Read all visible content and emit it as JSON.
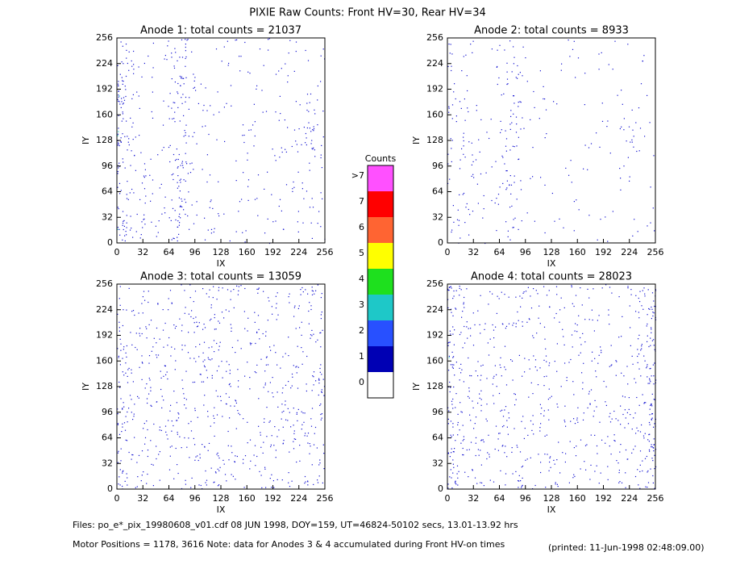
{
  "title": "PIXIE Raw Counts:  Front HV=30, Rear HV=34",
  "chart_data": [
    {
      "type": "heatmap",
      "title": "Anode 1: total counts = 21037",
      "xlabel": "IX",
      "ylabel": "IY",
      "xlim": [
        0,
        256
      ],
      "ylim": [
        0,
        256
      ],
      "xticks": [
        0,
        32,
        64,
        96,
        128,
        160,
        192,
        224,
        256
      ],
      "yticks": [
        0,
        32,
        64,
        96,
        128,
        160,
        192,
        224,
        256
      ]
    },
    {
      "type": "heatmap",
      "title": "Anode 2: total counts = 8933",
      "xlabel": "IX",
      "ylabel": "IY",
      "xlim": [
        0,
        256
      ],
      "ylim": [
        0,
        256
      ],
      "xticks": [
        0,
        32,
        64,
        96,
        128,
        160,
        192,
        224,
        256
      ],
      "yticks": [
        0,
        32,
        64,
        96,
        128,
        160,
        192,
        224,
        256
      ]
    },
    {
      "type": "heatmap",
      "title": "Anode 3: total counts = 13059",
      "xlabel": "IX",
      "ylabel": "IY",
      "xlim": [
        0,
        256
      ],
      "ylim": [
        0,
        256
      ],
      "xticks": [
        0,
        32,
        64,
        96,
        128,
        160,
        192,
        224,
        256
      ],
      "yticks": [
        0,
        32,
        64,
        96,
        128,
        160,
        192,
        224,
        256
      ]
    },
    {
      "type": "heatmap",
      "title": "Anode 4: total counts = 28023",
      "xlabel": "IX",
      "ylabel": "IY",
      "xlim": [
        0,
        256
      ],
      "ylim": [
        0,
        256
      ],
      "xticks": [
        0,
        32,
        64,
        96,
        128,
        160,
        192,
        224,
        256
      ],
      "yticks": [
        0,
        32,
        64,
        96,
        128,
        160,
        192,
        224,
        256
      ]
    }
  ],
  "colorbar": {
    "title": "Counts",
    "ticks": [
      0,
      1,
      2,
      3,
      4,
      5,
      6,
      7,
      {
        "value": 8,
        "label": ">7"
      }
    ],
    "colors": [
      "#ffffff",
      "#0000b4",
      "#2850ff",
      "#1ec8c8",
      "#1ee01e",
      "#ffff00",
      "#ff6432",
      "#ff0000",
      "#ff50ff"
    ]
  },
  "footer": {
    "files": "Files: po_e*_pix_19980608_v01.cdf    08 JUN 1998, DOY=159, UT=46824-50102 secs, 13.01-13.92 hrs",
    "motor": "Motor Positions = 1178, 3616   Note: data for Anodes 3 & 4 accumulated during Front HV-on times",
    "printed": "(printed: 11-Jun-1998 02:48:09.00)"
  }
}
